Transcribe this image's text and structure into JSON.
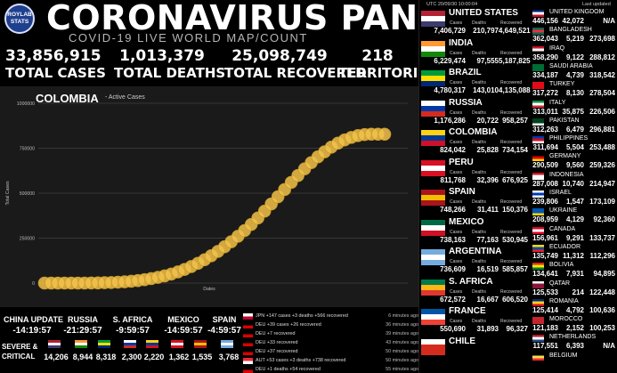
{
  "logo": {
    "line1": "ROYLAB",
    "line2": "STATS"
  },
  "header": {
    "title": "CORONAVIRUS PANDEMIC",
    "subtitle": "COVID-19 LIVE WORLD MAP/COUNT"
  },
  "totals": [
    {
      "value": "33,856,915",
      "label": "TOTAL CASES"
    },
    {
      "value": "1,013,379",
      "label": "TOTAL DEATHS"
    },
    {
      "value": "25,098,749",
      "label": "TOTAL RECOVERED"
    },
    {
      "value": "218",
      "label": "TERRITORIES"
    }
  ],
  "chart_title": "COLOMBIA",
  "chart_subtitle": "- Active Cases",
  "chart_data": {
    "type": "scatter",
    "title": "COLOMBIA",
    "subtitle": "- Active Cases",
    "xlabel": "Dates",
    "ylabel": "Total Cases",
    "ylim": [
      0,
      1000000
    ],
    "yticks": [
      "0",
      "250000",
      "500000",
      "750000",
      "1000000"
    ],
    "grid": true,
    "series": [
      {
        "values": [
          0,
          0,
          0,
          0,
          0,
          0,
          0,
          500,
          1000,
          2000,
          3000,
          5000,
          7000,
          10000,
          14000,
          19000,
          25000,
          32000,
          40000,
          50000,
          62000,
          76000,
          92000,
          110000,
          130000,
          152000,
          176000,
          202000,
          230000,
          260000,
          292000,
          326000,
          362000,
          400000,
          440000,
          480000,
          520000,
          560000,
          598000,
          635000,
          670000,
          702000,
          730000,
          756000,
          778000,
          796000,
          810000,
          820000,
          826000,
          828000,
          828000,
          828000
        ]
      }
    ],
    "color": "#f2c24a"
  },
  "china_update": {
    "label": "CHINA UPDATE",
    "time": "-14:19:57"
  },
  "clocks": [
    {
      "label": "RUSSIA",
      "time": "-21:29:57"
    },
    {
      "label": "S. AFRICA",
      "time": "-9:59:57"
    },
    {
      "label": "MEXICO",
      "time": "-14:59:57"
    },
    {
      "label": "SPAIN",
      "time": "-4:59:57"
    }
  ],
  "severe": {
    "label1": "SEVERE &",
    "label2": "CRITICAL"
  },
  "critical": [
    {
      "value": "14,206",
      "colors": [
        "#b22234",
        "#ffffff",
        "#3c3b6e"
      ]
    },
    {
      "value": "8,944",
      "colors": [
        "#ff9933",
        "#ffffff",
        "#138808"
      ]
    },
    {
      "value": "8,318",
      "colors": [
        "#009c3b",
        "#ffdf00",
        "#002776"
      ]
    },
    {
      "value": "2,300",
      "colors": [
        "#ffffff",
        "#0039a6",
        "#d52b1e"
      ]
    },
    {
      "value": "2,220",
      "colors": [
        "#fcd116",
        "#003893",
        "#ce1126"
      ]
    },
    {
      "value": "1,362",
      "colors": [
        "#d91023",
        "#ffffff",
        "#d91023"
      ]
    },
    {
      "value": "1,535",
      "colors": [
        "#aa151b",
        "#f1bf00",
        "#aa151b"
      ]
    },
    {
      "value": "3,768",
      "colors": [
        "#74acdf",
        "#ffffff",
        "#74acdf"
      ]
    }
  ],
  "feed": [
    {
      "text": "JPN +147 cases +3 deaths +566 recovered",
      "ago": "6 minutes ago",
      "colors": [
        "#ffffff",
        "#bc002d"
      ]
    },
    {
      "text": "DEU +39 cases +26 recovered",
      "ago": "36 minutes ago",
      "colors": [
        "#000000",
        "#dd0000",
        "#ffce00"
      ]
    },
    {
      "text": "DEU +7 recovered",
      "ago": "39 minutes ago",
      "colors": [
        "#000000",
        "#dd0000",
        "#ffce00"
      ]
    },
    {
      "text": "DEU +33 recovered",
      "ago": "43 minutes ago",
      "colors": [
        "#000000",
        "#dd0000",
        "#ffce00"
      ]
    },
    {
      "text": "DEU +37 recovered",
      "ago": "50 minutes ago",
      "colors": [
        "#000000",
        "#dd0000",
        "#ffce00"
      ]
    },
    {
      "text": "AUT +53 cases +3 deaths +738 recovered",
      "ago": "50 minutes ago",
      "colors": [
        "#ed2939",
        "#ffffff",
        "#ed2939"
      ]
    },
    {
      "text": "DEU +1 deaths +54 recovered",
      "ago": "55 minutes ago",
      "colors": [
        "#000000",
        "#dd0000",
        "#ffce00"
      ]
    }
  ],
  "right_panel": {
    "utc": "UTC 20/09/30 10:00:04",
    "last_updated": "Last updated",
    "col1_labels": {
      "cases": "Cases",
      "deaths": "Deaths",
      "recovered": "Recovered"
    },
    "col1": [
      {
        "name": "UNITED STATES",
        "cases": "7,406,729",
        "deaths": "210,797",
        "recovered": "4,649,521",
        "colors": [
          "#b22234",
          "#ffffff",
          "#3c3b6e"
        ]
      },
      {
        "name": "INDIA",
        "cases": "6,229,474",
        "deaths": "97,555",
        "recovered": "5,187,825",
        "colors": [
          "#ff9933",
          "#ffffff",
          "#138808"
        ]
      },
      {
        "name": "BRAZIL",
        "cases": "4,780,317",
        "deaths": "143,010",
        "recovered": "4,135,088",
        "colors": [
          "#009c3b",
          "#ffdf00",
          "#002776"
        ]
      },
      {
        "name": "RUSSIA",
        "cases": "1,176,286",
        "deaths": "20,722",
        "recovered": "958,257",
        "colors": [
          "#ffffff",
          "#0039a6",
          "#d52b1e"
        ]
      },
      {
        "name": "COLOMBIA",
        "cases": "824,042",
        "deaths": "25,828",
        "recovered": "734,154",
        "colors": [
          "#fcd116",
          "#003893",
          "#ce1126"
        ]
      },
      {
        "name": "PERU",
        "cases": "811,768",
        "deaths": "32,396",
        "recovered": "676,925",
        "colors": [
          "#d91023",
          "#ffffff",
          "#d91023"
        ]
      },
      {
        "name": "SPAIN",
        "cases": "748,266",
        "deaths": "31,411",
        "recovered": "150,376",
        "colors": [
          "#aa151b",
          "#f1bf00",
          "#aa151b"
        ]
      },
      {
        "name": "MEXICO",
        "cases": "738,163",
        "deaths": "77,163",
        "recovered": "530,945",
        "colors": [
          "#006847",
          "#ffffff",
          "#ce1126"
        ]
      },
      {
        "name": "ARGENTINA",
        "cases": "736,609",
        "deaths": "16,519",
        "recovered": "585,857",
        "colors": [
          "#74acdf",
          "#ffffff",
          "#74acdf"
        ]
      },
      {
        "name": "S. AFRICA",
        "cases": "672,572",
        "deaths": "16,667",
        "recovered": "606,520",
        "colors": [
          "#007a4d",
          "#ffb612",
          "#de3831"
        ]
      },
      {
        "name": "FRANCE",
        "cases": "550,690",
        "deaths": "31,893",
        "recovered": "96,327",
        "colors": [
          "#0055a4",
          "#ffffff",
          "#ef4135"
        ]
      },
      {
        "name": "CHILE",
        "cases": "",
        "deaths": "",
        "recovered": "",
        "colors": [
          "#ffffff",
          "#d52b1e",
          "#d52b1e"
        ]
      }
    ],
    "col2": [
      {
        "name": "UNITED KINGDOM",
        "cases": "446,156",
        "deaths": "42,072",
        "recovered": "N/A",
        "colors": [
          "#012169",
          "#ffffff",
          "#c8102e"
        ]
      },
      {
        "name": "BANGLADESH",
        "cases": "362,043",
        "deaths": "5,219",
        "recovered": "273,698",
        "colors": [
          "#006a4e",
          "#f42a41",
          "#006a4e"
        ]
      },
      {
        "name": "IRAQ",
        "cases": "358,290",
        "deaths": "9,122",
        "recovered": "288,812",
        "colors": [
          "#ce1126",
          "#ffffff",
          "#000000"
        ]
      },
      {
        "name": "SAUDI ARABIA",
        "cases": "334,187",
        "deaths": "4,739",
        "recovered": "318,542",
        "colors": [
          "#006c35",
          "#006c35",
          "#006c35"
        ]
      },
      {
        "name": "TURKEY",
        "cases": "317,272",
        "deaths": "8,130",
        "recovered": "278,504",
        "colors": [
          "#e30a17",
          "#e30a17",
          "#e30a17"
        ]
      },
      {
        "name": "ITALY",
        "cases": "313,011",
        "deaths": "35,875",
        "recovered": "226,506",
        "colors": [
          "#009246",
          "#ffffff",
          "#ce2b37"
        ]
      },
      {
        "name": "PAKISTAN",
        "cases": "312,263",
        "deaths": "6,479",
        "recovered": "296,881",
        "colors": [
          "#01411c",
          "#01411c",
          "#ffffff"
        ]
      },
      {
        "name": "PHILIPPINES",
        "cases": "311,694",
        "deaths": "5,504",
        "recovered": "253,488",
        "colors": [
          "#0038a8",
          "#ce1126",
          "#ffffff"
        ]
      },
      {
        "name": "GERMANY",
        "cases": "290,509",
        "deaths": "9,560",
        "recovered": "259,326",
        "colors": [
          "#000000",
          "#dd0000",
          "#ffce00"
        ]
      },
      {
        "name": "INDONESIA",
        "cases": "287,008",
        "deaths": "10,740",
        "recovered": "214,947",
        "colors": [
          "#ce1126",
          "#ffffff",
          "#ffffff"
        ]
      },
      {
        "name": "ISRAEL",
        "cases": "239,806",
        "deaths": "1,547",
        "recovered": "173,109",
        "colors": [
          "#ffffff",
          "#0038b8",
          "#ffffff"
        ]
      },
      {
        "name": "UKRAINE",
        "cases": "208,959",
        "deaths": "4,129",
        "recovered": "92,360",
        "colors": [
          "#0057b7",
          "#0057b7",
          "#ffd700"
        ]
      },
      {
        "name": "CANADA",
        "cases": "156,961",
        "deaths": "9,291",
        "recovered": "133,737",
        "colors": [
          "#d80621",
          "#ffffff",
          "#d80621"
        ]
      },
      {
        "name": "ECUADOR",
        "cases": "135,749",
        "deaths": "11,312",
        "recovered": "112,296",
        "colors": [
          "#ffdd00",
          "#034ea2",
          "#ed1c24"
        ]
      },
      {
        "name": "BOLIVIA",
        "cases": "134,641",
        "deaths": "7,931",
        "recovered": "94,895",
        "colors": [
          "#d52b1e",
          "#f9e300",
          "#007934"
        ]
      },
      {
        "name": "QATAR",
        "cases": "125,533",
        "deaths": "214",
        "recovered": "122,448",
        "colors": [
          "#ffffff",
          "#8a1538",
          "#8a1538"
        ]
      },
      {
        "name": "ROMANIA",
        "cases": "125,414",
        "deaths": "4,792",
        "recovered": "100,636",
        "colors": [
          "#002b7f",
          "#fcd116",
          "#ce1126"
        ]
      },
      {
        "name": "MOROCCO",
        "cases": "121,183",
        "deaths": "2,152",
        "recovered": "100,253",
        "colors": [
          "#c1272d",
          "#c1272d",
          "#c1272d"
        ]
      },
      {
        "name": "NETHERLANDS",
        "cases": "117,551",
        "deaths": "6,393",
        "recovered": "N/A",
        "colors": [
          "#ae1c28",
          "#ffffff",
          "#21468b"
        ]
      },
      {
        "name": "BELGIUM",
        "cases": "",
        "deaths": "",
        "recovered": "",
        "colors": [
          "#000000",
          "#fae042",
          "#ed2939"
        ]
      }
    ]
  }
}
